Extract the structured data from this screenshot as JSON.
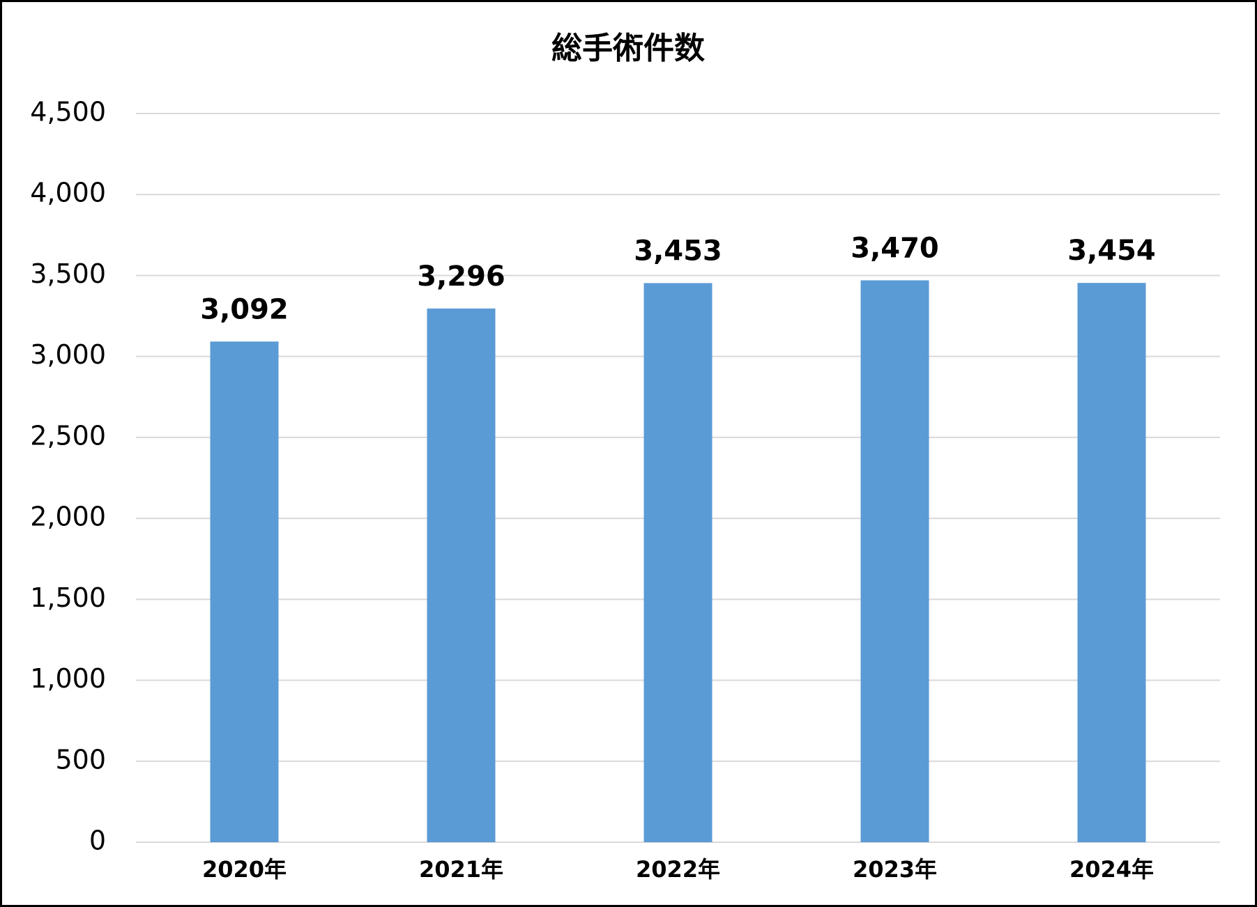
{
  "chart_data": {
    "type": "bar",
    "title": "総手術件数",
    "categories": [
      "2020年",
      "2021年",
      "2022年",
      "2023年",
      "2024年"
    ],
    "values": [
      3092,
      3296,
      3453,
      3470,
      3454
    ],
    "value_labels": [
      "3,092",
      "3,296",
      "3,453",
      "3,470",
      "3,454"
    ],
    "color": "#5b9bd5",
    "ylim": [
      0,
      4500
    ],
    "yticks": [
      0,
      500,
      {
        "value": 1000,
        "label": "1,000"
      },
      {
        "value": 1500,
        "label": "1,500"
      },
      {
        "value": 2000,
        "label": "2,000"
      },
      {
        "value": 2500,
        "label": "2,500"
      },
      {
        "value": 3000,
        "label": "3,000"
      },
      {
        "value": 3500,
        "label": "3,500"
      },
      {
        "value": 4000,
        "label": "4,000"
      },
      {
        "value": 4500,
        "label": "4,500"
      }
    ],
    "grid": true
  }
}
